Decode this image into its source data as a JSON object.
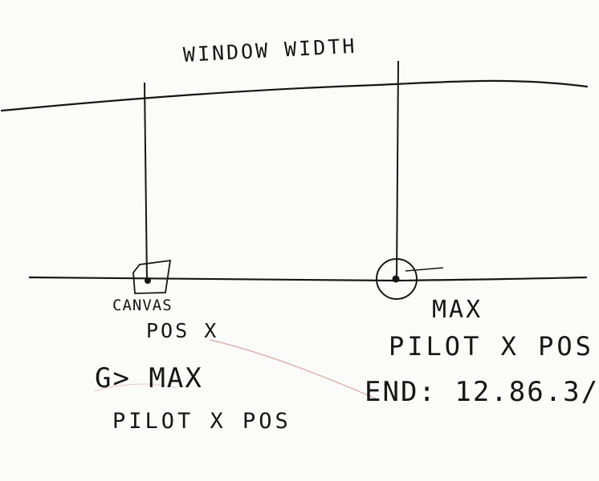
{
  "labels": {
    "window_width": "WINDOW WIDTH",
    "canvas_pos_line1": "CANVAS",
    "canvas_pos_line2": "POS X",
    "canvas_cond": "G> MAX",
    "canvas_cond_line2": "PILOT X POS",
    "max_line1": "MAX",
    "max_line2": "PILOT X POS",
    "max_line3": "END: 12.86.3/"
  },
  "colors": {
    "ink": "#161616",
    "connector": "#d9a7a4",
    "paper": "#fbfbf9"
  }
}
